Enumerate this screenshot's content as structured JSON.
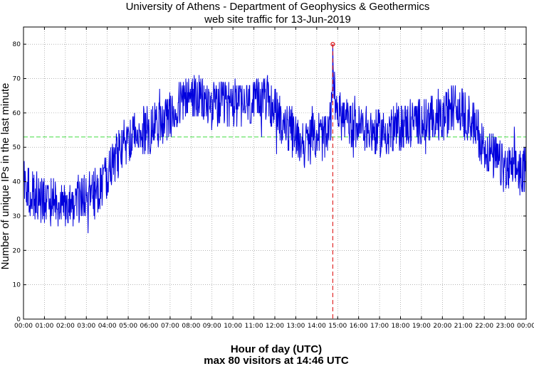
{
  "chart_data": {
    "type": "line",
    "title": "University of Athens - Department of Geophysics & Geothermics",
    "subtitle": "web site traffic for 13-Jun-2019",
    "xlabel": "Hour of day (UTC)",
    "footer": "max 80 visitors at 14:46 UTC",
    "ylabel": "Number of unique IPs in the last minute",
    "xlim": [
      0,
      1440
    ],
    "ylim": [
      0,
      85
    ],
    "yticks": [
      "0",
      "10",
      "20",
      "30",
      "40",
      "50",
      "60",
      "70",
      "80"
    ],
    "xticks": [
      "00:00",
      "01:00",
      "02:00",
      "03:00",
      "04:00",
      "05:00",
      "06:00",
      "07:00",
      "08:00",
      "09:00",
      "10:00",
      "11:00",
      "12:00",
      "13:00",
      "14:00",
      "15:00",
      "16:00",
      "17:00",
      "18:00",
      "19:00",
      "20:00",
      "21:00",
      "22:00",
      "23:00",
      "00:00"
    ],
    "grid": true,
    "average_line": 53,
    "max_point": {
      "time": "14:46",
      "minute": 886,
      "value": 80
    },
    "series_profile": {
      "unit": "minutes since 00:00",
      "x": [
        0,
        20,
        60,
        120,
        180,
        210,
        240,
        270,
        300,
        330,
        360,
        420,
        450,
        480,
        540,
        600,
        660,
        690,
        720,
        750,
        780,
        810,
        840,
        870,
        885,
        886,
        890,
        900,
        930,
        960,
        1020,
        1080,
        1140,
        1200,
        1230,
        1260,
        1290,
        1320,
        1350,
        1380,
        1410,
        1440
      ],
      "y": [
        40,
        37,
        34,
        33,
        36,
        37,
        42,
        48,
        53,
        54,
        55,
        58,
        63,
        65,
        62,
        63,
        62,
        65,
        61,
        56,
        53,
        51,
        54,
        52,
        62,
        80,
        66,
        60,
        57,
        56,
        54,
        56,
        58,
        58,
        62,
        60,
        57,
        50,
        47,
        43,
        44,
        43
      ],
      "noise_amplitude": 5
    },
    "colors": {
      "line": "#0000dd",
      "average": "#44dd44",
      "max": "#dd0000",
      "grid": "#888888"
    }
  }
}
